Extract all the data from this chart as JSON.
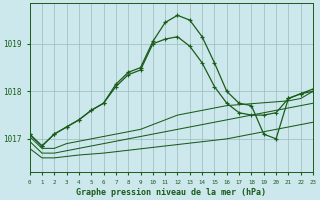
{
  "hours": [
    0,
    1,
    2,
    3,
    4,
    5,
    6,
    7,
    8,
    9,
    10,
    11,
    12,
    13,
    14,
    15,
    16,
    17,
    18,
    19,
    20,
    21,
    22,
    23
  ],
  "line_main": [
    1017.1,
    1016.85,
    1017.1,
    1017.25,
    1017.4,
    1017.6,
    1017.75,
    1018.15,
    1018.4,
    1018.5,
    1019.05,
    1019.45,
    1019.6,
    1019.5,
    1019.15,
    1018.6,
    1018.0,
    1017.75,
    1017.7,
    1017.1,
    1017.0,
    1017.85,
    1017.95,
    1018.0
  ],
  "line_top": [
    1017.1,
    1016.85,
    1017.1,
    1017.25,
    1017.4,
    1017.6,
    1017.75,
    1018.1,
    1018.35,
    1018.45,
    1019.0,
    1019.1,
    1019.15,
    1018.95,
    1018.6,
    1018.1,
    1017.75,
    1017.55,
    1017.5,
    1017.5,
    1017.55,
    1017.85,
    1017.95,
    1018.05
  ],
  "line_upper": [
    1017.05,
    1016.8,
    1016.8,
    1016.9,
    1016.95,
    1017.0,
    1017.05,
    1017.1,
    1017.15,
    1017.2,
    1017.3,
    1017.4,
    1017.5,
    1017.55,
    1017.6,
    1017.65,
    1017.7,
    1017.72,
    1017.74,
    1017.76,
    1017.78,
    1017.8,
    1017.85,
    1018.0
  ],
  "line_mid": [
    1016.95,
    1016.7,
    1016.7,
    1016.75,
    1016.8,
    1016.85,
    1016.9,
    1016.95,
    1017.0,
    1017.05,
    1017.1,
    1017.15,
    1017.2,
    1017.25,
    1017.3,
    1017.35,
    1017.4,
    1017.45,
    1017.5,
    1017.55,
    1017.6,
    1017.65,
    1017.7,
    1017.75
  ],
  "line_lower": [
    1016.8,
    1016.6,
    1016.6,
    1016.63,
    1016.66,
    1016.68,
    1016.7,
    1016.73,
    1016.76,
    1016.79,
    1016.82,
    1016.85,
    1016.88,
    1016.91,
    1016.94,
    1016.97,
    1017.0,
    1017.05,
    1017.1,
    1017.15,
    1017.2,
    1017.25,
    1017.3,
    1017.35
  ],
  "line_color": "#1a5c1a",
  "bg_color": "#cce8ec",
  "grid_color": "#99bbbb",
  "axis_color": "#1a5c1a",
  "xlabel": "Graphe pression niveau de la mer (hPa)",
  "yticks": [
    1017,
    1018,
    1019
  ],
  "ylim": [
    1016.3,
    1019.85
  ],
  "xlim": [
    0,
    23
  ]
}
